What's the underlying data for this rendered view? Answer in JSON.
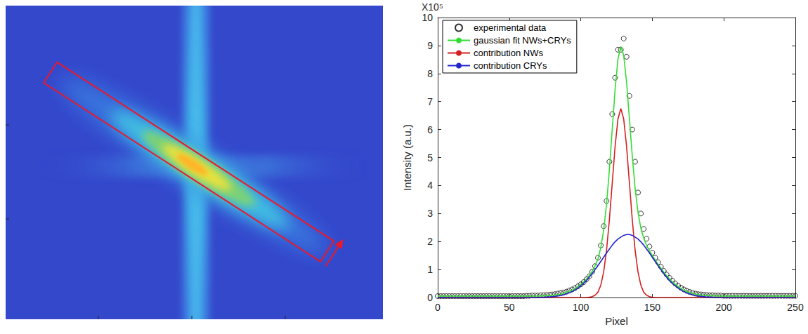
{
  "chart_data": {
    "type": "line",
    "xlabel": "Pixel",
    "ylabel": "Intensity (a.u.)",
    "annotations": [
      "X10⁵"
    ],
    "xlim": [
      0,
      250
    ],
    "xticks": [
      0,
      50,
      100,
      150,
      200,
      250
    ],
    "ylim": [
      0,
      10
    ],
    "yticks": [
      0,
      1,
      2,
      3,
      4,
      5,
      6,
      7,
      8,
      9,
      10
    ],
    "grid": false,
    "legend": "upper left",
    "x": [
      0,
      2,
      4,
      6,
      8,
      10,
      12,
      14,
      16,
      18,
      20,
      22,
      24,
      26,
      28,
      30,
      32,
      34,
      36,
      38,
      40,
      42,
      44,
      46,
      48,
      50,
      52,
      54,
      56,
      58,
      60,
      62,
      64,
      66,
      68,
      70,
      72,
      74,
      76,
      78,
      80,
      82,
      84,
      86,
      88,
      90,
      92,
      94,
      96,
      98,
      100,
      102,
      104,
      106,
      108,
      110,
      112,
      114,
      116,
      118,
      120,
      122,
      124,
      126,
      128,
      130,
      132,
      134,
      136,
      138,
      140,
      142,
      144,
      146,
      148,
      150,
      152,
      154,
      156,
      158,
      160,
      162,
      164,
      166,
      168,
      170,
      172,
      174,
      176,
      178,
      180,
      182,
      184,
      186,
      188,
      190,
      192,
      194,
      196,
      198,
      200,
      202,
      204,
      206,
      208,
      210,
      212,
      214,
      216,
      218,
      220,
      222,
      224,
      226,
      228,
      230,
      232,
      234,
      236,
      238,
      240,
      242,
      244,
      246,
      248,
      250
    ],
    "series": [
      {
        "name": "experimental data",
        "type": "scatter",
        "marker": "open circle",
        "color": "#000000",
        "values": [
          0.05,
          0.05,
          0.05,
          0.05,
          0.05,
          0.05,
          0.05,
          0.05,
          0.05,
          0.05,
          0.05,
          0.05,
          0.05,
          0.05,
          0.05,
          0.05,
          0.05,
          0.05,
          0.05,
          0.05,
          0.05,
          0.05,
          0.05,
          0.05,
          0.05,
          0.05,
          0.05,
          0.05,
          0.05,
          0.05,
          0.05,
          0.06,
          0.06,
          0.07,
          0.07,
          0.07,
          0.08,
          0.08,
          0.09,
          0.1,
          0.11,
          0.12,
          0.14,
          0.16,
          0.18,
          0.21,
          0.25,
          0.29,
          0.34,
          0.4,
          0.47,
          0.55,
          0.65,
          0.76,
          0.92,
          1.12,
          1.42,
          1.86,
          2.55,
          3.45,
          4.85,
          6.55,
          7.85,
          8.85,
          8.85,
          9.25,
          8.6,
          7.2,
          6.0,
          4.85,
          3.75,
          3.0,
          2.45,
          2.1,
          1.82,
          1.6,
          1.42,
          1.26,
          1.1,
          0.95,
          0.82,
          0.7,
          0.6,
          0.5,
          0.42,
          0.35,
          0.29,
          0.24,
          0.2,
          0.17,
          0.14,
          0.12,
          0.11,
          0.1,
          0.09,
          0.08,
          0.08,
          0.07,
          0.07,
          0.07,
          0.06,
          0.06,
          0.06,
          0.06,
          0.06,
          0.06,
          0.06,
          0.06,
          0.06,
          0.06,
          0.06,
          0.06,
          0.06,
          0.06,
          0.06,
          0.06,
          0.06,
          0.06,
          0.06,
          0.06,
          0.06,
          0.06,
          0.06,
          0.06,
          0.06,
          0.06
        ]
      },
      {
        "name": "gaussian fit NWs+CRYs",
        "type": "line",
        "line_style": "solid",
        "color": "#33dd33",
        "values": [
          0.05,
          0.05,
          0.05,
          0.05,
          0.05,
          0.05,
          0.05,
          0.05,
          0.05,
          0.05,
          0.05,
          0.05,
          0.05,
          0.05,
          0.05,
          0.05,
          0.05,
          0.05,
          0.05,
          0.05,
          0.05,
          0.05,
          0.05,
          0.05,
          0.05,
          0.05,
          0.05,
          0.05,
          0.05,
          0.05,
          0.05,
          0.05,
          0.05,
          0.05,
          0.05,
          0.055,
          0.057,
          0.06,
          0.065,
          0.07,
          0.08,
          0.09,
          0.105,
          0.12,
          0.15,
          0.18,
          0.22,
          0.26,
          0.32,
          0.39,
          0.47,
          0.56,
          0.66,
          0.79,
          0.94,
          1.13,
          1.38,
          1.78,
          2.4,
          3.32,
          4.56,
          6.01,
          7.44,
          8.52,
          8.96,
          8.65,
          7.7,
          6.39,
          5.05,
          3.89,
          3.05,
          2.48,
          2.11,
          1.86,
          1.67,
          1.5,
          1.34,
          1.19,
          1.05,
          0.91,
          0.78,
          0.66,
          0.56,
          0.47,
          0.39,
          0.32,
          0.26,
          0.22,
          0.18,
          0.15,
          0.12,
          0.105,
          0.09,
          0.08,
          0.07,
          0.065,
          0.06,
          0.057,
          0.055,
          0.05,
          0.05,
          0.05,
          0.05,
          0.05,
          0.05,
          0.05,
          0.05,
          0.05,
          0.05,
          0.05,
          0.05,
          0.05,
          0.05,
          0.05,
          0.05,
          0.05,
          0.05,
          0.05,
          0.05,
          0.05,
          0.05,
          0.05,
          0.05,
          0.05,
          0.05,
          0.05
        ]
      },
      {
        "name": "contribution NWs",
        "type": "line",
        "line_style": "solid",
        "color": "#d42020",
        "values": [
          0,
          0,
          0,
          0,
          0,
          0,
          0,
          0,
          0,
          0,
          0,
          0,
          0,
          0,
          0,
          0,
          0,
          0,
          0,
          0,
          0,
          0,
          0,
          0,
          0,
          0,
          0,
          0,
          0,
          0,
          0,
          0,
          0,
          0,
          0,
          0,
          0,
          0,
          0,
          0,
          0,
          0,
          0,
          0,
          0,
          0,
          0,
          0,
          0,
          0,
          0,
          0,
          0,
          0.01,
          0.03,
          0.08,
          0.19,
          0.44,
          0.91,
          1.68,
          2.78,
          4.09,
          5.4,
          6.38,
          6.75,
          6.38,
          5.4,
          4.09,
          2.78,
          1.68,
          0.91,
          0.44,
          0.19,
          0.08,
          0.03,
          0.01,
          0,
          0,
          0,
          0,
          0,
          0,
          0,
          0,
          0,
          0,
          0,
          0,
          0,
          0,
          0,
          0,
          0,
          0,
          0,
          0,
          0,
          0,
          0,
          0,
          0,
          0,
          0,
          0,
          0,
          0,
          0,
          0,
          0,
          0,
          0,
          0,
          0,
          0,
          0,
          0,
          0,
          0,
          0,
          0,
          0,
          0,
          0,
          0,
          0,
          0
        ]
      },
      {
        "name": "contribution CRYs",
        "type": "line",
        "line_style": "solid",
        "color": "#2424d0",
        "values": [
          0,
          0,
          0,
          0,
          0,
          0,
          0,
          0,
          0,
          0,
          0,
          0,
          0,
          0,
          0,
          0,
          0,
          0,
          0,
          0,
          0,
          0,
          0,
          0,
          0,
          0,
          0,
          0,
          0,
          0,
          0,
          0,
          0,
          0,
          0,
          0.005,
          0.007,
          0.01,
          0.015,
          0.02,
          0.03,
          0.04,
          0.055,
          0.07,
          0.1,
          0.13,
          0.17,
          0.21,
          0.27,
          0.34,
          0.42,
          0.51,
          0.61,
          0.73,
          0.86,
          1.0,
          1.14,
          1.29,
          1.44,
          1.59,
          1.73,
          1.87,
          1.99,
          2.09,
          2.16,
          2.22,
          2.25,
          2.25,
          2.22,
          2.16,
          2.09,
          1.99,
          1.87,
          1.73,
          1.59,
          1.44,
          1.29,
          1.14,
          1.0,
          0.86,
          0.73,
          0.61,
          0.51,
          0.42,
          0.34,
          0.27,
          0.21,
          0.17,
          0.13,
          0.1,
          0.07,
          0.055,
          0.04,
          0.03,
          0.02,
          0.015,
          0.01,
          0.007,
          0.005,
          0,
          0,
          0,
          0,
          0,
          0,
          0,
          0,
          0,
          0,
          0,
          0,
          0,
          0,
          0,
          0,
          0,
          0,
          0,
          0,
          0,
          0,
          0,
          0,
          0,
          0,
          0
        ]
      }
    ]
  }
}
